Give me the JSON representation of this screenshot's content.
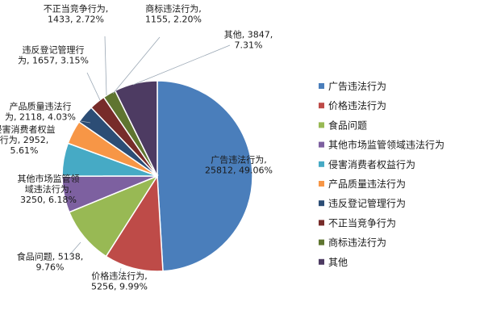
{
  "chart_data": {
    "type": "pie",
    "title": "",
    "legend_position": "right",
    "slices": [
      {
        "name": "广告违法行为",
        "value": 25812,
        "percent": "49.06%",
        "color": "#4a7ebb",
        "label_lines": [
          "广告违法行为,",
          "25812, 49.06%"
        ]
      },
      {
        "name": "价格违法行为",
        "value": 5256,
        "percent": "9.99%",
        "color": "#be4b48",
        "label_lines": [
          "价格违法行为,",
          "5256, 9.99%"
        ]
      },
      {
        "name": "食品问题",
        "value": 5138,
        "percent": "9.76%",
        "color": "#98b954",
        "label_lines": [
          "食品问题, 5138,",
          "9.76%"
        ]
      },
      {
        "name": "其他市场监管领域违法行为",
        "value": 3250,
        "percent": "6.18%",
        "color": "#7d60a0",
        "label_lines": [
          "其他市场监管领",
          "域违法行为,",
          "3250, 6.18%"
        ]
      },
      {
        "name": "侵害消费者权益行为",
        "value": 2952,
        "percent": "5.61%",
        "color": "#46aac5",
        "label_lines": [
          "侵害消费者权益",
          "行为, 2952,",
          "5.61%"
        ]
      },
      {
        "name": "产品质量违法行为",
        "value": 2118,
        "percent": "4.03%",
        "color": "#f79646",
        "label_lines": [
          "产品质量违法行",
          "为, 2118, 4.03%"
        ]
      },
      {
        "name": "违反登记管理行为",
        "value": 1657,
        "percent": "3.15%",
        "color": "#2c4d75",
        "label_lines": [
          "违反登记管理行",
          "为, 1657, 3.15%"
        ]
      },
      {
        "name": "不正当竞争行为",
        "value": 1433,
        "percent": "2.72%",
        "color": "#772c2a",
        "label_lines": [
          "不正当竞争行为,",
          "1433, 2.72%"
        ]
      },
      {
        "name": "商标违法行为",
        "value": 1155,
        "percent": "2.20%",
        "color": "#5f7530",
        "label_lines": [
          "商标违法行为,",
          "1155, 2.20%"
        ]
      },
      {
        "name": "其他",
        "value": 3847,
        "percent": "7.31%",
        "color": "#4d3b62",
        "label_lines": [
          "其他, 3847,",
          "7.31%"
        ]
      }
    ]
  }
}
